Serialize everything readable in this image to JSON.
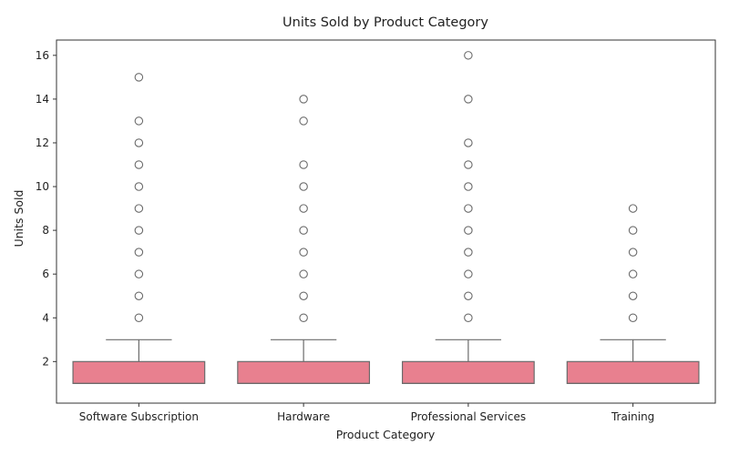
{
  "chart_data": {
    "type": "box",
    "title": "Units Sold by Product Category",
    "xlabel": "Product Category",
    "ylabel": "Units Sold",
    "ylim": [
      0.1,
      16.7
    ],
    "yticks": [
      2,
      4,
      6,
      8,
      10,
      12,
      14,
      16
    ],
    "grid": false,
    "box_color": "#e8808f",
    "line_color": "#6b6b6b",
    "categories": [
      "Software Subscription",
      "Hardware",
      "Professional Services",
      "Training"
    ],
    "boxes": [
      {
        "category": "Software Subscription",
        "whisker_low": 1,
        "q1": 1,
        "median": 1,
        "q3": 2,
        "whisker_high": 3,
        "outliers": [
          4,
          5,
          6,
          7,
          8,
          9,
          10,
          11,
          12,
          13,
          15
        ]
      },
      {
        "category": "Hardware",
        "whisker_low": 1,
        "q1": 1,
        "median": 1,
        "q3": 2,
        "whisker_high": 3,
        "outliers": [
          4,
          5,
          6,
          7,
          8,
          9,
          10,
          11,
          13,
          14
        ]
      },
      {
        "category": "Professional Services",
        "whisker_low": 1,
        "q1": 1,
        "median": 1,
        "q3": 2,
        "whisker_high": 3,
        "outliers": [
          4,
          5,
          6,
          7,
          8,
          9,
          10,
          11,
          12,
          14,
          16
        ]
      },
      {
        "category": "Training",
        "whisker_low": 1,
        "q1": 1,
        "median": 1,
        "q3": 2,
        "whisker_high": 3,
        "outliers": [
          4,
          5,
          6,
          7,
          8,
          9
        ]
      }
    ]
  }
}
